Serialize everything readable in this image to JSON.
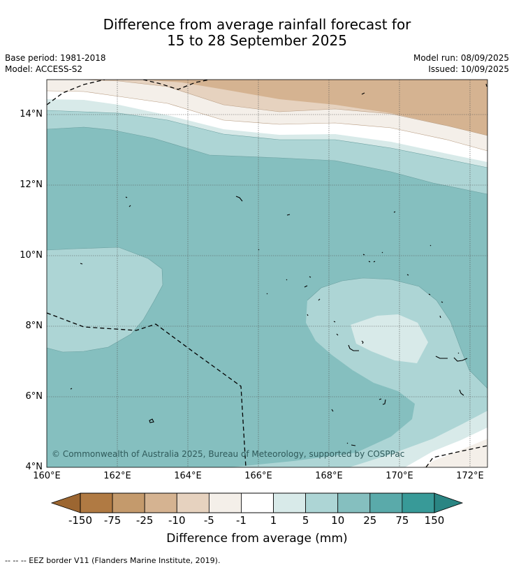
{
  "title": {
    "line1": "Difference from average rainfall forecast for",
    "line2": "15 to 28 September 2025"
  },
  "meta": {
    "base_period": "Base period: 1981-2018",
    "model": "Model: ACCESS-S2",
    "model_run": "Model run: 08/09/2025",
    "issued": "Issued: 10/09/2025"
  },
  "map": {
    "lat_labels": [
      "14°N",
      "12°N",
      "10°N",
      "8°N",
      "6°N",
      "4°N"
    ],
    "lon_labels": [
      "160°E",
      "162°E",
      "164°E",
      "166°E",
      "168°E",
      "170°E",
      "172°E"
    ],
    "copyright": "© Commonwealth of Australia 2025, Bureau of Meteorology, supported by COSPPac"
  },
  "colorbar": {
    "labels": [
      "-150",
      "-75",
      "-25",
      "-10",
      "-5",
      "-1",
      "1",
      "5",
      "10",
      "25",
      "75",
      "150"
    ],
    "colors": [
      "#9c6631",
      "#b07a43",
      "#c49a6c",
      "#d5b391",
      "#e6d2bf",
      "#f4efe9",
      "#ffffff",
      "#d8eae9",
      "#add5d5",
      "#85bfbf",
      "#5aaaaa",
      "#389a98",
      "#2a8583"
    ],
    "title": "Difference from average (mm)"
  },
  "footer": "--  --  -- EEZ border V11 (Flanders Marine Institute, 2019)."
}
